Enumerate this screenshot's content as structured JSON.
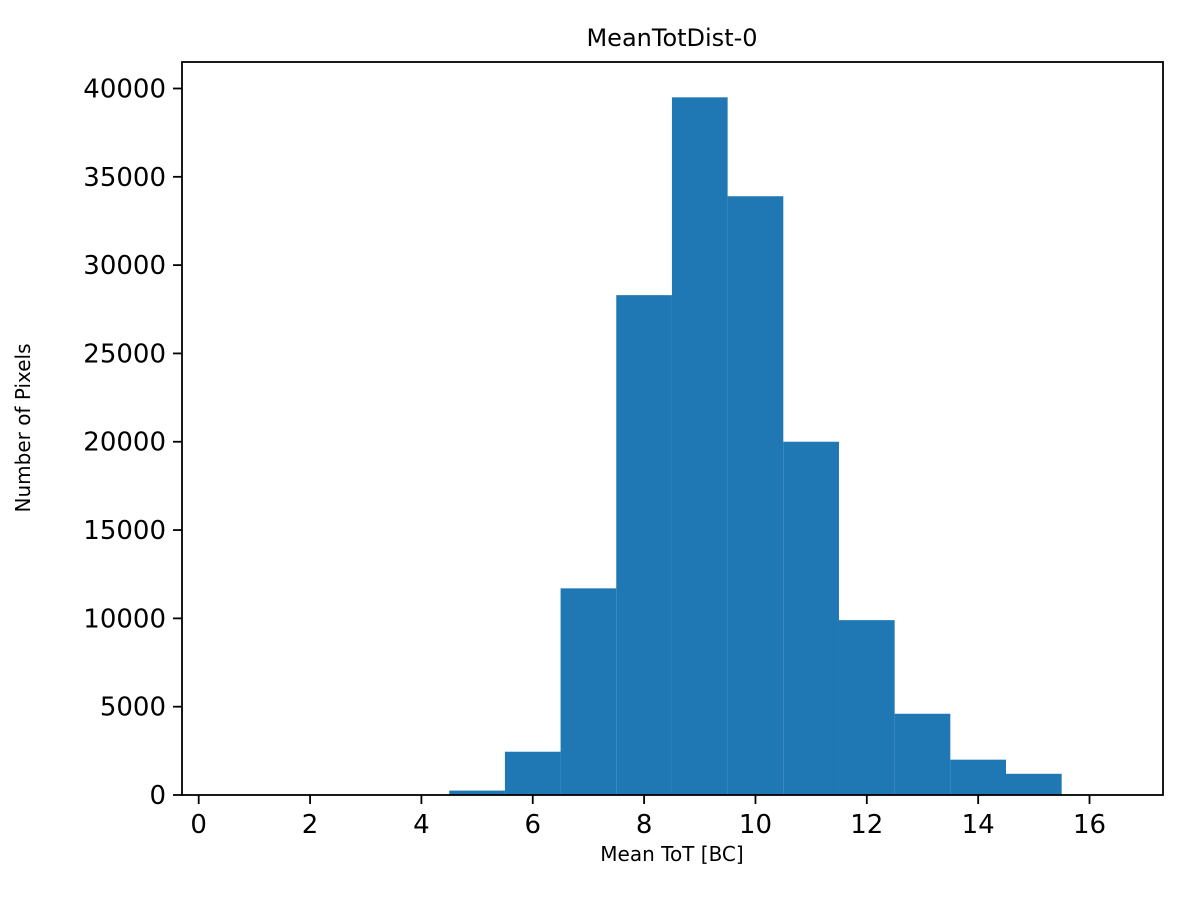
{
  "figure": {
    "background": "#ffffff"
  },
  "chart_data": {
    "type": "bar",
    "subtype": "histogram",
    "title": "MeanTotDist-0",
    "xlabel": "Mean ToT [BC]",
    "ylabel": "Number of Pixels",
    "bar_color": "#1f77b4",
    "bin_edges": [
      4.5,
      5.5,
      6.5,
      7.5,
      8.5,
      9.5,
      10.5,
      11.5,
      12.5,
      13.5,
      14.5,
      15.5
    ],
    "counts": [
      250,
      2450,
      11700,
      28300,
      39500,
      33900,
      20000,
      9900,
      4600,
      2000,
      1200
    ],
    "xlim": [
      -0.3,
      17.32
    ],
    "ylim": [
      0,
      41500
    ],
    "xticks": [
      0,
      2,
      4,
      6,
      8,
      10,
      12,
      14,
      16
    ],
    "yticks": [
      0,
      5000,
      10000,
      15000,
      20000,
      25000,
      30000,
      35000,
      40000
    ],
    "grid": false,
    "legend": null
  }
}
